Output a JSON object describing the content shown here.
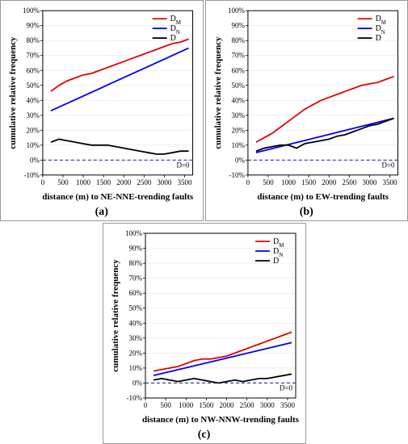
{
  "layout": {
    "panels": [
      "a",
      "b",
      "c"
    ],
    "panel_border_color": "#999999"
  },
  "shared": {
    "ylabel": "cumulative relative frequency",
    "ylim": [
      -10,
      100
    ],
    "ytick_step": 10,
    "ytick_suffix": "%",
    "xlim": [
      0,
      3700
    ],
    "xticks": [
      0,
      500,
      1000,
      1500,
      2000,
      2500,
      3000,
      3500
    ],
    "line_width": 1.8,
    "grid_color": "#e0e0e0",
    "background_color": "#ffffff",
    "zero_line_color": "#1f3a93",
    "zero_line_dash": "4,3",
    "zero_line_label": "D=0",
    "axis_font_size": 11,
    "tick_font_size": 9,
    "legend_font_size": 10,
    "series_meta": {
      "DM": {
        "label_html": "D",
        "sub": "M",
        "color": "#e60000"
      },
      "DN": {
        "label_html": "D",
        "sub": "N",
        "color": "#0000ff"
      },
      "D": {
        "label_html": "D",
        "sub": "",
        "color": "#000000"
      }
    }
  },
  "panels": {
    "a": {
      "sublabel": "(a)",
      "xlabel": "distance (m) to NE-NNE-trending faults",
      "series": {
        "DM": {
          "x": [
            200,
            400,
            600,
            800,
            1000,
            1200,
            1400,
            1600,
            1800,
            2000,
            2200,
            2400,
            2600,
            2800,
            3000,
            3200,
            3400,
            3600
          ],
          "y": [
            46,
            50,
            53,
            55,
            57,
            58,
            60,
            62,
            64,
            66,
            68,
            70,
            72,
            74,
            76,
            78,
            79,
            81
          ]
        },
        "DN": {
          "x": [
            200,
            3600
          ],
          "y": [
            33,
            75
          ]
        },
        "D": {
          "x": [
            200,
            400,
            600,
            800,
            1000,
            1200,
            1400,
            1600,
            1800,
            2000,
            2200,
            2400,
            2600,
            2800,
            3000,
            3200,
            3400,
            3600
          ],
          "y": [
            12,
            14,
            13,
            12,
            11,
            10,
            10,
            10,
            9,
            8,
            7,
            6,
            5,
            4,
            4,
            5,
            6,
            6
          ]
        }
      }
    },
    "b": {
      "sublabel": "(b)",
      "xlabel": "distance (m) to EW-trending faults",
      "series": {
        "DM": {
          "x": [
            200,
            400,
            600,
            800,
            1000,
            1200,
            1400,
            1600,
            1800,
            2000,
            2200,
            2400,
            2600,
            2800,
            3000,
            3200,
            3400,
            3600
          ],
          "y": [
            12,
            15,
            18,
            22,
            26,
            30,
            34,
            37,
            40,
            42,
            44,
            46,
            48,
            50,
            51,
            52,
            54,
            56
          ]
        },
        "DN": {
          "x": [
            200,
            3600
          ],
          "y": [
            5,
            28
          ]
        },
        "D": {
          "x": [
            200,
            400,
            600,
            800,
            1000,
            1200,
            1400,
            1600,
            1800,
            2000,
            2200,
            2400,
            2600,
            2800,
            3000,
            3200,
            3400,
            3600
          ],
          "y": [
            6,
            8,
            9,
            10,
            10,
            8,
            11,
            12,
            13,
            14,
            16,
            17,
            19,
            21,
            23,
            24,
            26,
            28
          ]
        }
      }
    },
    "c": {
      "sublabel": "(c)",
      "xlabel": "distance (m) to NW-NNW-trending faults",
      "series": {
        "DM": {
          "x": [
            200,
            400,
            600,
            800,
            1000,
            1200,
            1400,
            1600,
            1800,
            2000,
            2200,
            2400,
            2600,
            2800,
            3000,
            3200,
            3400,
            3600
          ],
          "y": [
            8,
            9,
            10,
            11,
            13,
            15,
            16,
            16,
            17,
            18,
            20,
            22,
            24,
            26,
            28,
            30,
            32,
            34
          ]
        },
        "DN": {
          "x": [
            200,
            3600
          ],
          "y": [
            5,
            27
          ]
        },
        "D": {
          "x": [
            200,
            400,
            600,
            800,
            1000,
            1200,
            1400,
            1600,
            1800,
            2000,
            2200,
            2400,
            2600,
            2800,
            3000,
            3200,
            3400,
            3600
          ],
          "y": [
            2,
            3,
            2,
            1,
            2,
            3,
            2,
            1,
            0,
            1,
            2,
            1,
            2,
            3,
            3,
            4,
            5,
            6
          ]
        }
      }
    }
  }
}
